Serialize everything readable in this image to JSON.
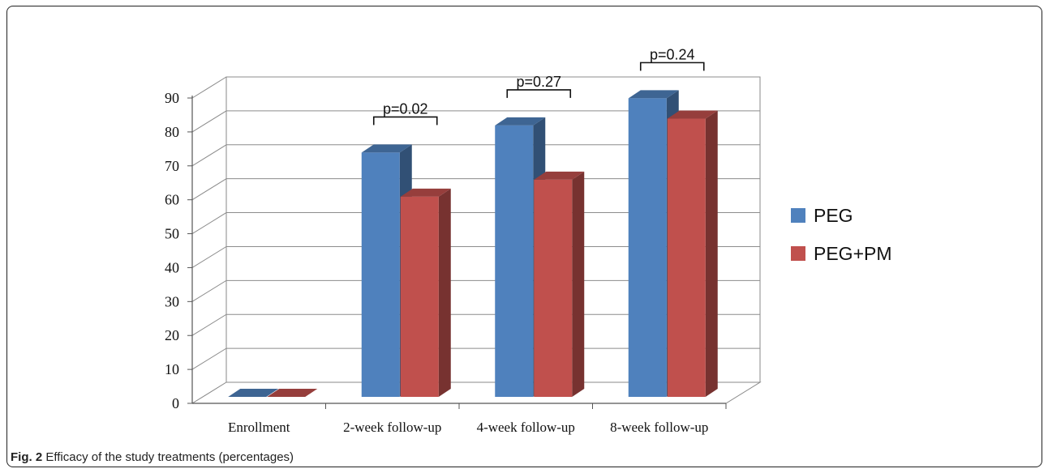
{
  "caption": {
    "label": "Fig. 2",
    "text": "Efficacy of the study treatments (percentages)"
  },
  "chart_data": {
    "type": "bar",
    "categories": [
      "Enrollment",
      "2-week follow-up",
      "4-week follow-up",
      "8-week follow-up"
    ],
    "series": [
      {
        "name": "PEG",
        "color": "#4f81bd",
        "values": [
          0,
          72,
          80,
          88
        ]
      },
      {
        "name": "PEG+PM",
        "color": "#c0504d",
        "values": [
          0,
          59,
          64,
          82
        ]
      }
    ],
    "ylim": [
      0,
      90
    ],
    "yticks": [
      0,
      10,
      20,
      30,
      40,
      50,
      60,
      70,
      80,
      90
    ],
    "grid": true,
    "legend": "right",
    "annotations": [
      {
        "category": "2-week follow-up",
        "text": "p=0.02"
      },
      {
        "category": "4-week follow-up",
        "text": "p=0.27"
      },
      {
        "category": "8-week follow-up",
        "text": "p=0.24"
      }
    ]
  }
}
